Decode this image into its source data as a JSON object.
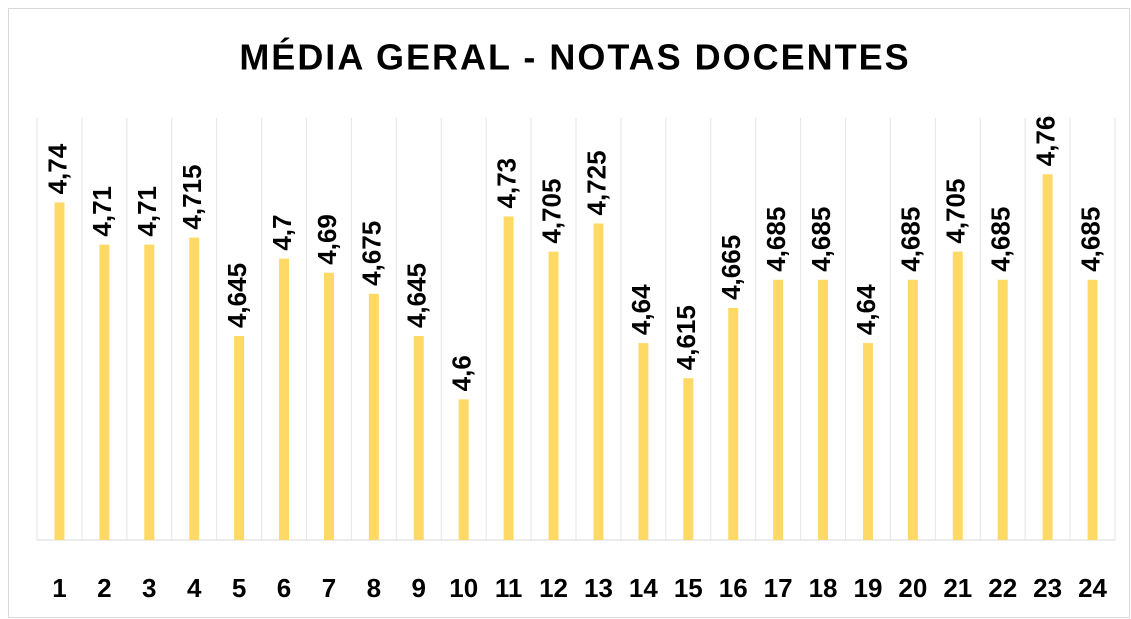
{
  "chart_data": {
    "type": "bar",
    "title": "MÉDIA GERAL - NOTAS DOCENTES",
    "categories": [
      "1",
      "2",
      "3",
      "4",
      "5",
      "6",
      "7",
      "8",
      "9",
      "10",
      "11",
      "12",
      "13",
      "14",
      "15",
      "16",
      "17",
      "18",
      "19",
      "20",
      "21",
      "22",
      "23",
      "24"
    ],
    "values": [
      4.74,
      4.71,
      4.71,
      4.715,
      4.645,
      4.7,
      4.69,
      4.675,
      4.645,
      4.6,
      4.73,
      4.705,
      4.725,
      4.64,
      4.615,
      4.665,
      4.685,
      4.685,
      4.64,
      4.685,
      4.705,
      4.685,
      4.76,
      4.685
    ],
    "value_labels": [
      "4,74",
      "4,71",
      "4,71",
      "4,715",
      "4,645",
      "4,7",
      "4,69",
      "4,675",
      "4,645",
      "4,6",
      "4,73",
      "4,705",
      "4,725",
      "4,64",
      "4,615",
      "4,665",
      "4,685",
      "4,685",
      "4,64",
      "4,685",
      "4,705",
      "4,685",
      "4,76",
      "4,685"
    ],
    "color": "#ffd966",
    "ylim": [
      4.5,
      4.8
    ],
    "grid": true
  }
}
